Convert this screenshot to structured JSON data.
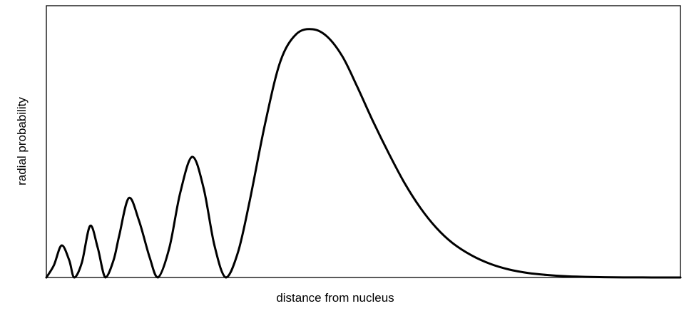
{
  "chart_data": {
    "type": "line",
    "title": "",
    "xlabel": "distance from nucleus",
    "ylabel": "radial probability",
    "grid": false,
    "legend": "none",
    "x_ticks_shown": false,
    "y_ticks_shown": false,
    "xlim": [
      0,
      100
    ],
    "ylim": [
      0,
      100
    ],
    "series": [
      {
        "color": "#000000",
        "x": [
          0,
          1.2,
          2.4,
          3.6,
          4.4,
          5.6,
          6.9,
          8.1,
          9.3,
          10.6,
          11.5,
          13,
          14.6,
          16.3,
          17.6,
          19.4,
          21.1,
          23,
          24.8,
          26.5,
          28.3,
          30.2,
          32,
          34.5,
          36.9,
          39.4,
          42,
          44.3,
          46.7,
          49,
          51.5,
          54,
          56.5,
          59,
          61.5,
          64,
          67,
          70,
          73,
          76,
          79,
          82,
          85,
          88,
          91,
          94,
          97,
          100
        ],
        "y": [
          0,
          5,
          12.9,
          7,
          0,
          6,
          20.8,
          12,
          0,
          7,
          17,
          32,
          23,
          8,
          0,
          12,
          34,
          48.6,
          36,
          13,
          0,
          10,
          30,
          62,
          87,
          98,
          100,
          97,
          89,
          77,
          63,
          50,
          38,
          28,
          20,
          14,
          9,
          5.5,
          3.2,
          1.8,
          1,
          0.5,
          0.25,
          0.12,
          0.05,
          0.02,
          0.01,
          0
        ]
      }
    ]
  }
}
